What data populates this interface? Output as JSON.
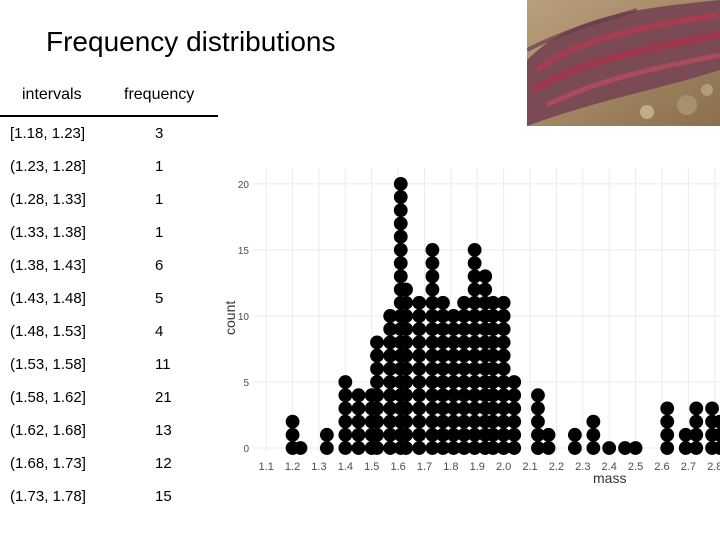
{
  "slide": {
    "title": "Frequency distributions"
  },
  "photo": {
    "icon": "salmon-stream-photo"
  },
  "table": {
    "headers": {
      "intervals": "intervals",
      "frequency": "frequency"
    },
    "rows": [
      {
        "interval": "[1.18, 1.23]",
        "frequency": "3"
      },
      {
        "interval": "(1.23, 1.28]",
        "frequency": "1"
      },
      {
        "interval": "(1.28, 1.33]",
        "frequency": "1"
      },
      {
        "interval": "(1.33, 1.38]",
        "frequency": "1"
      },
      {
        "interval": "(1.38, 1.43]",
        "frequency": "6"
      },
      {
        "interval": "(1.43, 1.48]",
        "frequency": "5"
      },
      {
        "interval": "(1.48, 1.53]",
        "frequency": "4"
      },
      {
        "interval": "(1.53, 1.58]",
        "frequency": "11"
      },
      {
        "interval": "(1.58, 1.62]",
        "frequency": "21"
      },
      {
        "interval": "(1.62, 1.68]",
        "frequency": "13"
      },
      {
        "interval": "(1.68, 1.73]",
        "frequency": "12"
      },
      {
        "interval": "(1.73, 1.78]",
        "frequency": "15"
      }
    ]
  },
  "chart_data": {
    "type": "scatter",
    "title": "",
    "xlabel": "mass",
    "ylabel": "count",
    "xlim": [
      1.05,
      2.82
    ],
    "ylim": [
      -0.3,
      21.2
    ],
    "x_ticks": [
      "1.1",
      "1.2",
      "1.3",
      "1.4",
      "1.5",
      "1.6",
      "1.7",
      "1.8",
      "1.9",
      "2.0",
      "2.1",
      "2.2",
      "2.3",
      "2.4",
      "2.5",
      "2.6",
      "2.7",
      "2.8"
    ],
    "y_ticks": [
      "0",
      "5",
      "10",
      "15",
      "20"
    ],
    "grid": true,
    "series": [
      {
        "dot_color": "#000000",
        "stacks": [
          {
            "x": 1.2,
            "count": 3
          },
          {
            "x": 1.23,
            "count": 1
          },
          {
            "x": 1.33,
            "count": 2
          },
          {
            "x": 1.4,
            "count": 6
          },
          {
            "x": 1.45,
            "count": 5
          },
          {
            "x": 1.5,
            "count": 5
          },
          {
            "x": 1.52,
            "count": 9
          },
          {
            "x": 1.57,
            "count": 11
          },
          {
            "x": 1.61,
            "count": 21
          },
          {
            "x": 1.63,
            "count": 13
          },
          {
            "x": 1.68,
            "count": 12
          },
          {
            "x": 1.73,
            "count": 16
          },
          {
            "x": 1.77,
            "count": 12
          },
          {
            "x": 1.81,
            "count": 11
          },
          {
            "x": 1.85,
            "count": 12
          },
          {
            "x": 1.89,
            "count": 16
          },
          {
            "x": 1.93,
            "count": 14
          },
          {
            "x": 1.96,
            "count": 12
          },
          {
            "x": 2.0,
            "count": 12
          },
          {
            "x": 2.04,
            "count": 6
          },
          {
            "x": 2.13,
            "count": 5
          },
          {
            "x": 2.17,
            "count": 2
          },
          {
            "x": 2.27,
            "count": 2
          },
          {
            "x": 2.34,
            "count": 3
          },
          {
            "x": 2.4,
            "count": 1
          },
          {
            "x": 2.46,
            "count": 1
          },
          {
            "x": 2.5,
            "count": 1
          },
          {
            "x": 2.62,
            "count": 4
          },
          {
            "x": 2.69,
            "count": 2
          },
          {
            "x": 2.73,
            "count": 4
          },
          {
            "x": 2.79,
            "count": 4
          },
          {
            "x": 2.82,
            "count": 3
          }
        ]
      }
    ]
  }
}
